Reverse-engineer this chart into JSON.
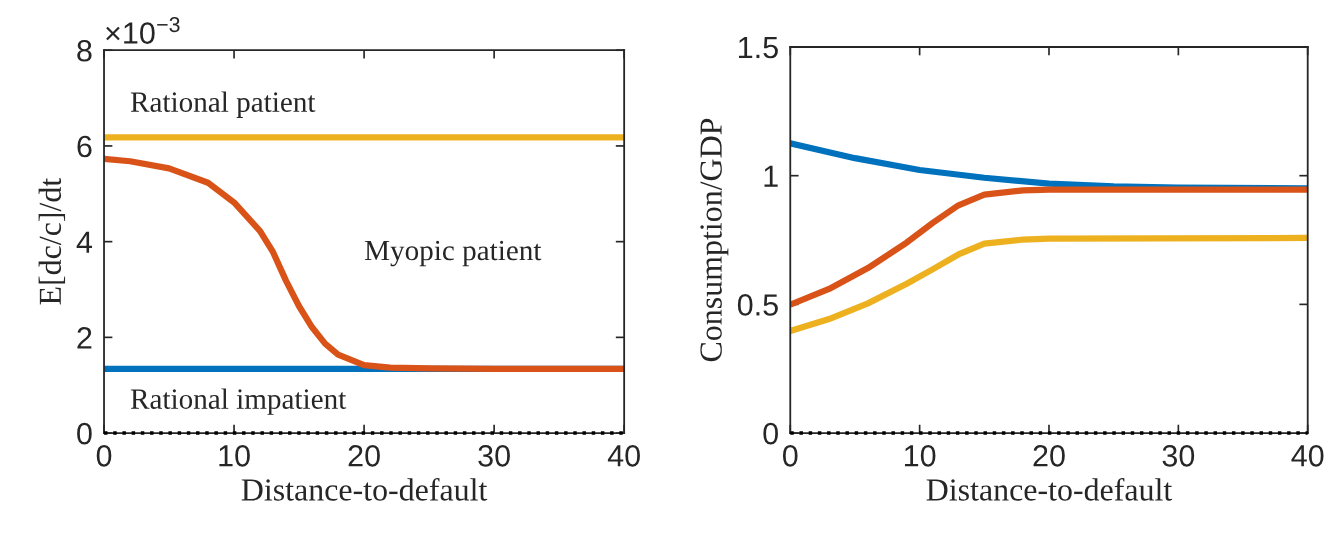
{
  "chart_data": [
    {
      "type": "line",
      "xlabel": "Distance-to-default",
      "ylabel": "E[dc/c]/dt",
      "xlim": [
        0,
        40
      ],
      "xticks": [
        0,
        10,
        20,
        30,
        40
      ],
      "ylim": [
        0,
        8
      ],
      "yticks": [
        0,
        2,
        4,
        6,
        8
      ],
      "grid": false,
      "legend": false,
      "line_style": "solid",
      "annotations": [
        "×10$^{−3}$"
      ],
      "ref_lines": [
        {
          "axis": "y",
          "value": 0,
          "color": "#000000",
          "line_style": "dotted"
        }
      ],
      "series": [
        {
          "name": "Rational impatient",
          "color": "#0072bd",
          "x": [
            0,
            40
          ],
          "values": [
            1.34,
            1.34
          ]
        },
        {
          "name": "Myopic patient",
          "color": "#d95319",
          "x": [
            0,
            2,
            5,
            8,
            10,
            12,
            13,
            14,
            15,
            16,
            17,
            18,
            20,
            22,
            25,
            30,
            40
          ],
          "values": [
            5.73,
            5.68,
            5.53,
            5.23,
            4.82,
            4.22,
            3.78,
            3.18,
            2.65,
            2.21,
            1.87,
            1.64,
            1.42,
            1.37,
            1.35,
            1.34,
            1.34
          ]
        },
        {
          "name": "Rational patient",
          "color": "#edb120",
          "x": [
            0,
            40
          ],
          "values": [
            6.18,
            6.18
          ]
        }
      ]
    },
    {
      "type": "line",
      "xlabel": "Distance-to-default",
      "ylabel": "Consumption/GDP",
      "xlim": [
        0,
        40
      ],
      "xticks": [
        0,
        10,
        20,
        30,
        40
      ],
      "ylim": [
        0,
        1.5
      ],
      "yticks": [
        0,
        0.5,
        1,
        1.5
      ],
      "grid": false,
      "legend": false,
      "line_style": "solid",
      "ref_lines": [
        {
          "axis": "y",
          "value": 0,
          "color": "#000000",
          "line_style": "dotted"
        }
      ],
      "series": [
        {
          "color": "#0072bd",
          "x": [
            0,
            5,
            10,
            15,
            20,
            25,
            30,
            40
          ],
          "values": [
            1.126,
            1.068,
            1.022,
            0.992,
            0.969,
            0.958,
            0.954,
            0.951
          ]
        },
        {
          "color": "#d95319",
          "x": [
            0,
            3,
            6,
            9,
            11,
            13,
            15,
            18,
            20,
            40
          ],
          "values": [
            0.499,
            0.56,
            0.641,
            0.74,
            0.816,
            0.885,
            0.926,
            0.943,
            0.946,
            0.946
          ]
        },
        {
          "color": "#edb120",
          "x": [
            0,
            3,
            6,
            9,
            11,
            13,
            15,
            18,
            20,
            40
          ],
          "values": [
            0.397,
            0.443,
            0.504,
            0.58,
            0.636,
            0.694,
            0.736,
            0.752,
            0.755,
            0.758
          ]
        }
      ]
    }
  ]
}
